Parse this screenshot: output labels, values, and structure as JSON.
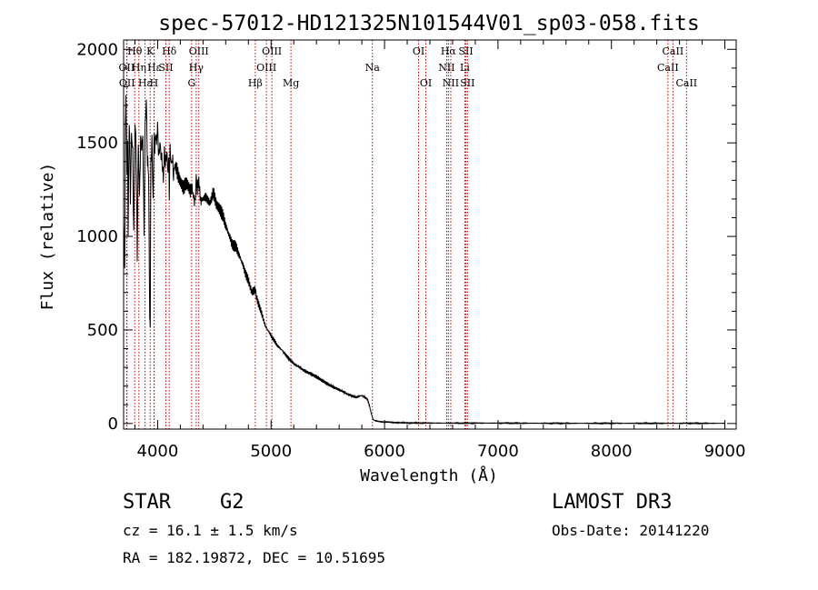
{
  "chart_data": {
    "type": "line",
    "title": "spec-57012-HD121325N101544V01_sp03-058.fits",
    "xlabel": "Wavelength (Å)",
    "ylabel": "Flux (relative)",
    "xlim": [
      3700,
      9100
    ],
    "ylim": [
      -30,
      2050
    ],
    "xticks": [
      4000,
      5000,
      6000,
      7000,
      8000,
      9000
    ],
    "yticks": [
      0,
      500,
      1000,
      1500,
      2000
    ],
    "grid": false,
    "series": [
      {
        "name": "flux",
        "color": "#000000",
        "x": [
          3700,
          3705,
          3710,
          3715,
          3720,
          3725,
          3730,
          3735,
          3740,
          3750,
          3760,
          3770,
          3780,
          3790,
          3800,
          3810,
          3820,
          3830,
          3840,
          3850,
          3860,
          3870,
          3880,
          3890,
          3900,
          3910,
          3920,
          3930,
          3935,
          3940,
          3950,
          3960,
          3965,
          3970,
          3975,
          3980,
          3990,
          4000,
          4010,
          4020,
          4030,
          4040,
          4050,
          4060,
          4070,
          4080,
          4090,
          4100,
          4102,
          4110,
          4120,
          4130,
          4140,
          4150,
          4170,
          4200,
          4230,
          4260,
          4290,
          4300,
          4310,
          4330,
          4340,
          4350,
          4360,
          4380,
          4400,
          4430,
          4460,
          4490,
          4520,
          4550,
          4600,
          4650,
          4700,
          4750,
          4800,
          4830,
          4860,
          4870,
          4900,
          4950,
          5000,
          5050,
          5100,
          5150,
          5200,
          5300,
          5400,
          5500,
          5600,
          5700,
          5750,
          5800,
          5850,
          5870,
          5880,
          5890,
          5900,
          5920,
          5950,
          6000,
          6100,
          6200,
          6500,
          7000,
          7500,
          8000,
          8500,
          9000
        ],
        "values": [
          1100,
          900,
          820,
          1620,
          1720,
          1580,
          1300,
          1500,
          1000,
          1650,
          1200,
          1550,
          1450,
          1000,
          1600,
          1500,
          880,
          1500,
          1200,
          1520,
          1470,
          1540,
          1000,
          1600,
          1720,
          1400,
          1350,
          560,
          520,
          1400,
          1500,
          1200,
          1380,
          1600,
          1450,
          1550,
          1500,
          1580,
          1420,
          1500,
          1430,
          1400,
          1300,
          1460,
          1380,
          1460,
          1350,
          1400,
          1200,
          1480,
          1380,
          1420,
          1320,
          1380,
          1350,
          1300,
          1260,
          1280,
          1240,
          1270,
          1230,
          1180,
          1320,
          1240,
          1300,
          1190,
          1200,
          1210,
          1180,
          1230,
          1170,
          1150,
          1060,
          970,
          930,
          850,
          760,
          700,
          720,
          680,
          620,
          520,
          470,
          420,
          390,
          350,
          320,
          280,
          250,
          210,
          180,
          150,
          140,
          150,
          130,
          90,
          60,
          40,
          20,
          15,
          10,
          8,
          5,
          3,
          2,
          2,
          1,
          1,
          1,
          1
        ]
      }
    ],
    "lines": [
      {
        "label": "Hθ",
        "x": 3798,
        "row": 0
      },
      {
        "label": "OII",
        "x": 3727,
        "row": 1
      },
      {
        "label": "OII",
        "x": 3730,
        "row": 2
      },
      {
        "label": "Hη",
        "x": 3835,
        "row": 1
      },
      {
        "label": "Hε",
        "x": 3889,
        "row": 2
      },
      {
        "label": "K",
        "x": 3934,
        "row": 0
      },
      {
        "label": "H",
        "x": 3968,
        "row": 2
      },
      {
        "label": "Hε",
        "x": 3970,
        "row": 1
      },
      {
        "label": "Hδ",
        "x": 4102,
        "row": 0
      },
      {
        "label": "SII",
        "x": 4072,
        "row": 1
      },
      {
        "label": "OIII",
        "x": 4363,
        "row": 0
      },
      {
        "label": "Hγ",
        "x": 4340,
        "row": 1
      },
      {
        "label": "G",
        "x": 4300,
        "row": 2
      },
      {
        "label": "Hβ",
        "x": 4861,
        "row": 2
      },
      {
        "label": "OIII",
        "x": 5007,
        "row": 0
      },
      {
        "label": "OIII",
        "x": 4959,
        "row": 1
      },
      {
        "label": "Mg",
        "x": 5175,
        "row": 2
      },
      {
        "label": "Na",
        "x": 5893,
        "row": 1
      },
      {
        "label": "OI",
        "x": 6300,
        "row": 0
      },
      {
        "label": "OI",
        "x": 6364,
        "row": 2
      },
      {
        "label": "Hα",
        "x": 6563,
        "row": 0
      },
      {
        "label": "NII",
        "x": 6548,
        "row": 1
      },
      {
        "label": "NII",
        "x": 6584,
        "row": 2
      },
      {
        "label": "SII",
        "x": 6717,
        "row": 0
      },
      {
        "label": "Li",
        "x": 6708,
        "row": 1
      },
      {
        "label": "SII",
        "x": 6731,
        "row": 2
      },
      {
        "label": "CaII",
        "x": 8542,
        "row": 0
      },
      {
        "label": "CaII",
        "x": 8498,
        "row": 1
      },
      {
        "label": "CaII",
        "x": 8662,
        "row": 2
      }
    ]
  },
  "info": {
    "object_class": "STAR",
    "subclass": "G2",
    "cz": "cz = 16.1 ± 1.5 km/s",
    "coords": "RA = 182.19872, DEC =  10.51695",
    "survey": "LAMOST DR3",
    "obs_date": "Obs-Date: 20141220"
  }
}
